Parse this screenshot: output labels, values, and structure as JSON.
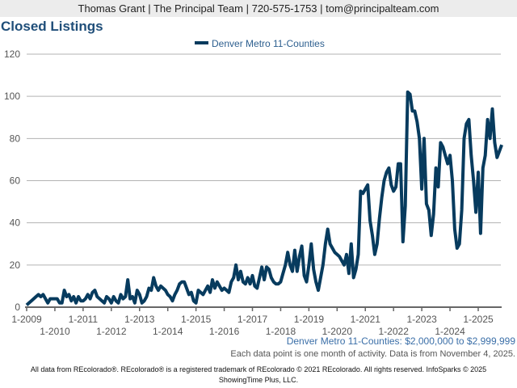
{
  "header": {
    "contact": "Thomas Grant | The Principal Team | 720-575-1753 | tom@principalteam.com"
  },
  "chart_data": {
    "type": "line",
    "title": "Closed Listings",
    "xlabel": "",
    "ylabel": "",
    "ylim": [
      0,
      120
    ],
    "yticks": [
      0,
      20,
      40,
      60,
      80,
      100,
      120
    ],
    "grid": true,
    "legend": {
      "placement": "top-center",
      "entries": [
        "Denver Metro 11-Counties"
      ]
    },
    "color": "#073b5e",
    "x_start": "1-2009",
    "x_interval": "month",
    "xtick_labels": [
      "1-2009",
      "1-2010",
      "1-2011",
      "1-2012",
      "1-2013",
      "1-2014",
      "1-2015",
      "1-2016",
      "1-2017",
      "1-2018",
      "1-2019",
      "1-2020",
      "1-2021",
      "1-2022",
      "1-2023",
      "1-2024",
      "1-2025"
    ],
    "series": [
      {
        "name": "Denver Metro 11-Counties",
        "values": [
          1,
          2,
          3,
          4,
          5,
          6,
          5,
          6,
          4,
          2,
          4,
          4,
          4,
          4,
          2,
          2,
          8,
          5,
          6,
          3,
          5,
          2,
          5,
          3,
          3,
          4,
          6,
          4,
          7,
          8,
          5,
          4,
          3,
          2,
          5,
          4,
          2,
          5,
          3,
          2,
          6,
          4,
          5,
          13,
          4,
          5,
          2,
          8,
          6,
          2,
          3,
          5,
          9,
          8,
          14,
          10,
          8,
          10,
          9,
          8,
          6,
          5,
          3,
          6,
          8,
          11,
          12,
          12,
          9,
          6,
          7,
          3,
          2,
          8,
          7,
          6,
          8,
          10,
          7,
          13,
          9,
          12,
          10,
          8,
          9,
          8,
          7,
          12,
          14,
          20,
          13,
          17,
          12,
          11,
          14,
          11,
          15,
          10,
          9,
          14,
          19,
          13,
          19,
          18,
          14,
          12,
          11,
          11,
          12,
          16,
          20,
          26,
          20,
          17,
          27,
          17,
          24,
          29,
          15,
          12,
          20,
          30,
          18,
          12,
          8,
          14,
          20,
          30,
          37,
          30,
          28,
          26,
          25,
          24,
          22,
          20,
          25,
          16,
          30,
          14,
          18,
          25,
          55,
          54,
          56,
          58,
          41,
          34,
          25,
          30,
          42,
          52,
          60,
          64,
          66,
          58,
          55,
          57,
          68,
          68,
          31,
          48,
          102,
          101,
          93,
          93,
          88,
          80,
          56,
          80,
          49,
          46,
          34,
          44,
          66,
          57,
          78,
          76,
          72,
          68,
          72,
          60,
          37,
          28,
          30,
          46,
          80,
          87,
          89,
          72,
          60,
          45,
          64,
          35,
          66,
          72,
          89,
          80,
          94,
          78,
          71,
          74,
          77
        ]
      }
    ],
    "subtitle": "Denver Metro 11-Counties: $2,000,000 to $2,999,999"
  },
  "note": "Each data point is one month of activity. Data is from November 4, 2025.",
  "footer": {
    "line1": "All data from REcolorado®. REcolorado® is a registered trademark of REcolorado © 2021 REcolorado. All rights reserved. InfoSparks © 2025",
    "line2": "ShowingTime Plus, LLC."
  }
}
